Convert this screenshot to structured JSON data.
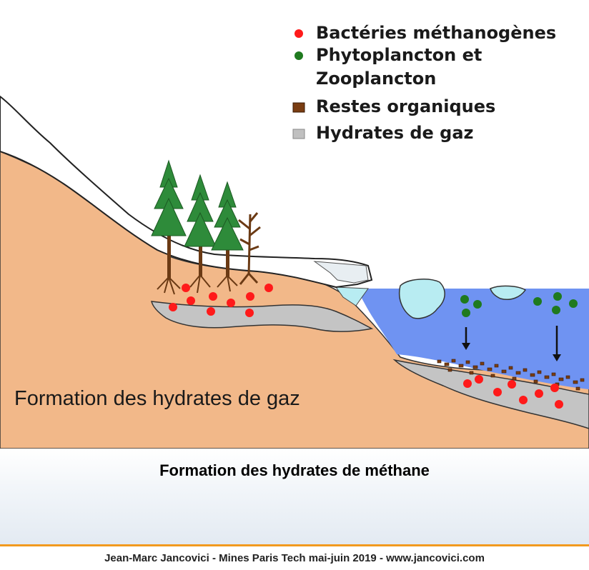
{
  "legend": [
    {
      "label": "Bactéries méthanogènes",
      "icon": "red-dot",
      "color": "#ff1a1a"
    },
    {
      "label": "Phytoplancton et",
      "label2": "Zooplancton",
      "icon": "green-dot",
      "color": "#1f7a1f"
    },
    {
      "label": "Restes organiques",
      "icon": "brown-square",
      "color": "#7a3d12"
    },
    {
      "label": "Hydrates de gaz",
      "icon": "gray-square",
      "color": "#c0c0c0"
    }
  ],
  "diagram_title": "Formation des hydrates de gaz",
  "caption": "Formation des hydrates de méthane",
  "footer": "Jean-Marc Jancovici - Mines Paris Tech mai-juin 2019 - www.jancovici.com",
  "colors": {
    "ground": "#f2b889",
    "water": "#6f93f2",
    "ice": "#b8ecf2",
    "snow": "#ffffff",
    "hydrate": "#c4c4c4",
    "tree": "#2e8b3a",
    "trunk": "#6b3a14",
    "accent_line": "#f29a1f"
  }
}
